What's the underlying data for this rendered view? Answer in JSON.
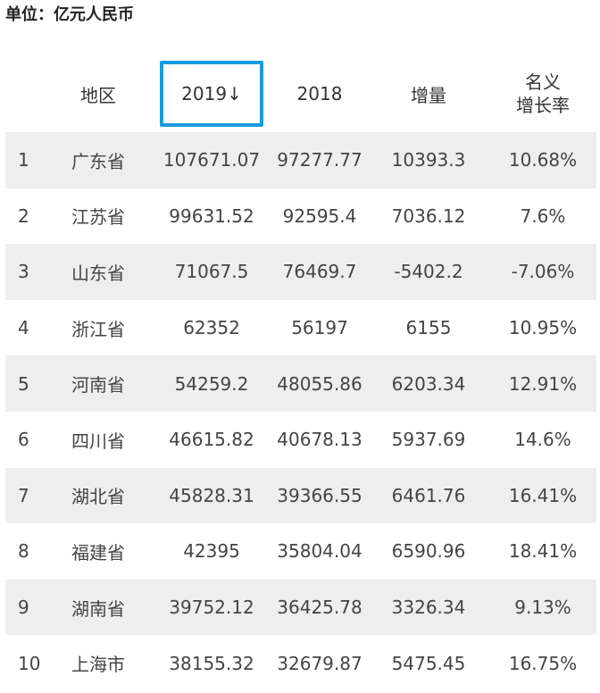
{
  "unit_label": "单位：亿元人民币",
  "table": {
    "headers": {
      "rank": "",
      "region": "地区",
      "y2019": "2019↓",
      "y2018": "2018",
      "increase": "增量",
      "rate_line1": "名义",
      "rate_line2": "增长率"
    },
    "rows": [
      {
        "rank": "1",
        "region": "广东省",
        "y2019": "107671.07",
        "y2018": "97277.77",
        "increase": "10393.3",
        "rate": "10.68%"
      },
      {
        "rank": "2",
        "region": "江苏省",
        "y2019": "99631.52",
        "y2018": "92595.4",
        "increase": "7036.12",
        "rate": "7.6%"
      },
      {
        "rank": "3",
        "region": "山东省",
        "y2019": "71067.5",
        "y2018": "76469.7",
        "increase": "-5402.2",
        "rate": "-7.06%"
      },
      {
        "rank": "4",
        "region": "浙江省",
        "y2019": "62352",
        "y2018": "56197",
        "increase": "6155",
        "rate": "10.95%"
      },
      {
        "rank": "5",
        "region": "河南省",
        "y2019": "54259.2",
        "y2018": "48055.86",
        "increase": "6203.34",
        "rate": "12.91%"
      },
      {
        "rank": "6",
        "region": "四川省",
        "y2019": "46615.82",
        "y2018": "40678.13",
        "increase": "5937.69",
        "rate": "14.6%"
      },
      {
        "rank": "7",
        "region": "湖北省",
        "y2019": "45828.31",
        "y2018": "39366.55",
        "increase": "6461.76",
        "rate": "16.41%"
      },
      {
        "rank": "8",
        "region": "福建省",
        "y2019": "42395",
        "y2018": "35804.04",
        "increase": "6590.96",
        "rate": "18.41%"
      },
      {
        "rank": "9",
        "region": "湖南省",
        "y2019": "39752.12",
        "y2018": "36425.78",
        "increase": "3326.34",
        "rate": "9.13%"
      },
      {
        "rank": "10",
        "region": "上海市",
        "y2019": "38155.32",
        "y2018": "32679.87",
        "increase": "5475.45",
        "rate": "16.75%"
      }
    ]
  },
  "colors": {
    "sort_highlight": "#1a9be0",
    "row_shade": "#eeeeee"
  }
}
